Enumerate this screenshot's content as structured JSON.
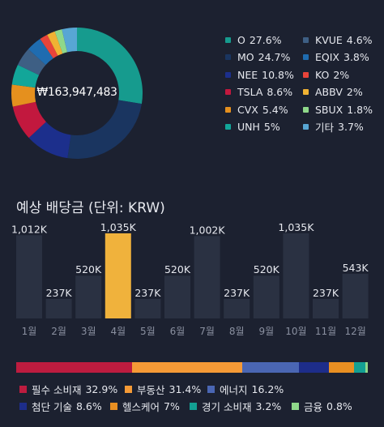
{
  "portfolio": {
    "total_value": "₩163,947,483",
    "holdings": [
      {
        "ticker": "O",
        "pct": "27.6%",
        "value": 27.6,
        "color": "#169b8e"
      },
      {
        "ticker": "MO",
        "pct": "24.7%",
        "value": 24.7,
        "color": "#1a3560"
      },
      {
        "ticker": "NEE",
        "pct": "10.8%",
        "value": 10.8,
        "color": "#1c2f8c"
      },
      {
        "ticker": "TSLA",
        "pct": "8.6%",
        "value": 8.6,
        "color": "#c2183e"
      },
      {
        "ticker": "CVX",
        "pct": "5.4%",
        "value": 5.4,
        "color": "#e5901e"
      },
      {
        "ticker": "UNH",
        "pct": "5%",
        "value": 5.0,
        "color": "#12a699"
      },
      {
        "ticker": "KVUE",
        "pct": "4.6%",
        "value": 4.6,
        "color": "#3e5f84"
      },
      {
        "ticker": "EQIX",
        "pct": "3.8%",
        "value": 3.8,
        "color": "#1f6cb0"
      },
      {
        "ticker": "KO",
        "pct": "2%",
        "value": 2.0,
        "color": "#e8443a"
      },
      {
        "ticker": "ABBV",
        "pct": "2%",
        "value": 2.0,
        "color": "#f0b233"
      },
      {
        "ticker": "SBUX",
        "pct": "1.8%",
        "value": 1.8,
        "color": "#8fd88a"
      },
      {
        "ticker": "기타",
        "pct": "3.7%",
        "value": 3.7,
        "color": "#58a6d4"
      }
    ]
  },
  "dividends": {
    "title": "예상 배당금 (단위: KRW)",
    "highlight_color": "#f0b23c",
    "bar_color": "#2a3142",
    "chart_data": {
      "type": "bar",
      "categories": [
        "1월",
        "2월",
        "3월",
        "4월",
        "5월",
        "6월",
        "7월",
        "8월",
        "9월",
        "10월",
        "11월",
        "12월"
      ],
      "values": [
        1012,
        237,
        520,
        1035,
        237,
        520,
        1002,
        237,
        520,
        1035,
        237,
        543
      ],
      "labels": [
        "1,012K",
        "237K",
        "520K",
        "1,035K",
        "237K",
        "520K",
        "1,002K",
        "237K",
        "520K",
        "1,035K",
        "237K",
        "543K"
      ],
      "highlight_index": 3,
      "ylim": [
        0,
        1035
      ]
    }
  },
  "sectors": {
    "items": [
      {
        "name": "필수 소비재",
        "pct": "32.9%",
        "value": 32.9,
        "color": "#bd1c3f"
      },
      {
        "name": "부동산",
        "pct": "31.4%",
        "value": 31.4,
        "color": "#f59a36"
      },
      {
        "name": "에너지",
        "pct": "16.2%",
        "value": 16.2,
        "color": "#4a66b3"
      },
      {
        "name": "첨단 기술",
        "pct": "8.6%",
        "value": 8.6,
        "color": "#1d2d8a"
      },
      {
        "name": "헬스케어",
        "pct": "7%",
        "value": 7.0,
        "color": "#e88f22"
      },
      {
        "name": "경기 소비재",
        "pct": "3.2%",
        "value": 3.2,
        "color": "#13a093"
      },
      {
        "name": "금융",
        "pct": "0.8%",
        "value": 0.8,
        "color": "#8fd88a"
      }
    ]
  }
}
